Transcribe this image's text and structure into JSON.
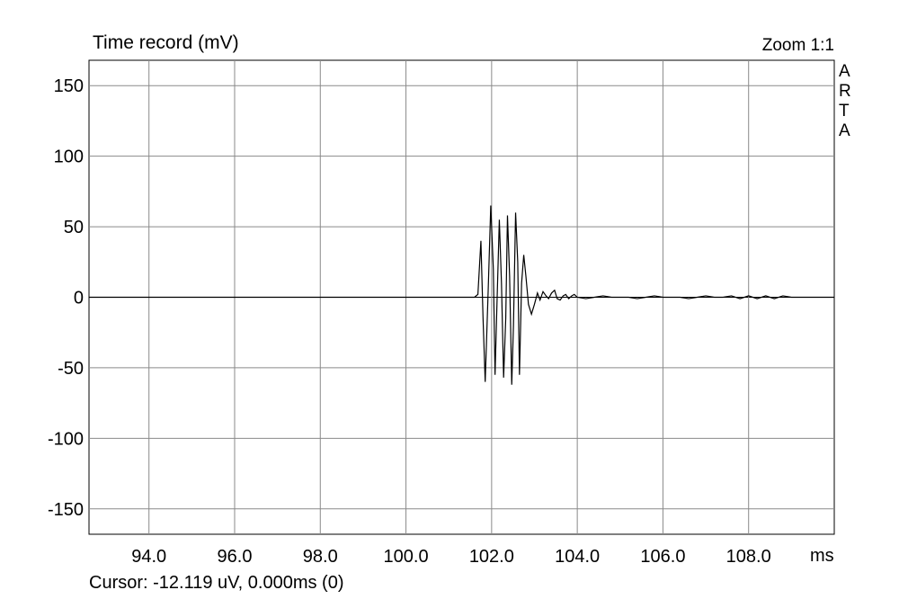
{
  "chart_data": {
    "type": "line",
    "title": "Time record (mV)",
    "zoom_label": "Zoom 1:1",
    "brand": "ARTA",
    "xunit": "ms",
    "cursor_readout": "Cursor: -12.119 uV, 0.000ms (0)",
    "xlim": [
      92.6,
      110.0
    ],
    "ylim": [
      -168,
      168
    ],
    "grid": true,
    "x_ticks": [
      94.0,
      96.0,
      98.0,
      100.0,
      102.0,
      104.0,
      106.0,
      108.0
    ],
    "x_tick_labels": [
      "94.0",
      "96.0",
      "98.0",
      "100.0",
      "102.0",
      "104.0",
      "106.0",
      "108.0"
    ],
    "y_ticks": [
      150,
      100,
      50,
      0,
      -50,
      -100,
      -150
    ],
    "y_tick_labels": [
      "150",
      "100",
      "50",
      "0",
      "-50",
      "-100",
      "-150"
    ],
    "series": [
      {
        "color": "#000000",
        "x": [
          92.6,
          101.6,
          101.68,
          101.75,
          101.8,
          101.85,
          101.92,
          101.98,
          102.04,
          102.08,
          102.12,
          102.18,
          102.23,
          102.28,
          102.33,
          102.37,
          102.42,
          102.47,
          102.51,
          102.56,
          102.61,
          102.65,
          102.7,
          102.75,
          102.8,
          102.86,
          102.93,
          103.0,
          103.07,
          103.13,
          103.2,
          103.27,
          103.33,
          103.4,
          103.47,
          103.53,
          103.6,
          103.67,
          103.73,
          103.8,
          103.87,
          103.93,
          104.0,
          104.2,
          104.4,
          104.6,
          104.8,
          105.0,
          105.2,
          105.4,
          105.6,
          105.8,
          106.0,
          106.2,
          106.4,
          106.6,
          106.8,
          107.0,
          107.2,
          107.4,
          107.6,
          107.8,
          108.0,
          108.2,
          108.4,
          108.6,
          108.8,
          109.0,
          109.2,
          110.0
        ],
        "y": [
          0,
          0,
          2,
          40,
          -15,
          -60,
          5,
          65,
          20,
          -55,
          -10,
          55,
          10,
          -57,
          -15,
          58,
          15,
          -62,
          -20,
          60,
          25,
          -55,
          10,
          30,
          15,
          -5,
          -12,
          -5,
          3,
          -2,
          4,
          1,
          -1,
          3,
          5,
          -1,
          -2,
          1,
          2,
          -1,
          1,
          2,
          0,
          -1,
          0,
          1,
          0,
          0,
          0,
          -1,
          0,
          1,
          0,
          0,
          0,
          -1,
          0,
          1,
          0,
          0,
          1,
          -1,
          1,
          -1,
          1,
          -1,
          1,
          0,
          0,
          0
        ]
      }
    ]
  }
}
